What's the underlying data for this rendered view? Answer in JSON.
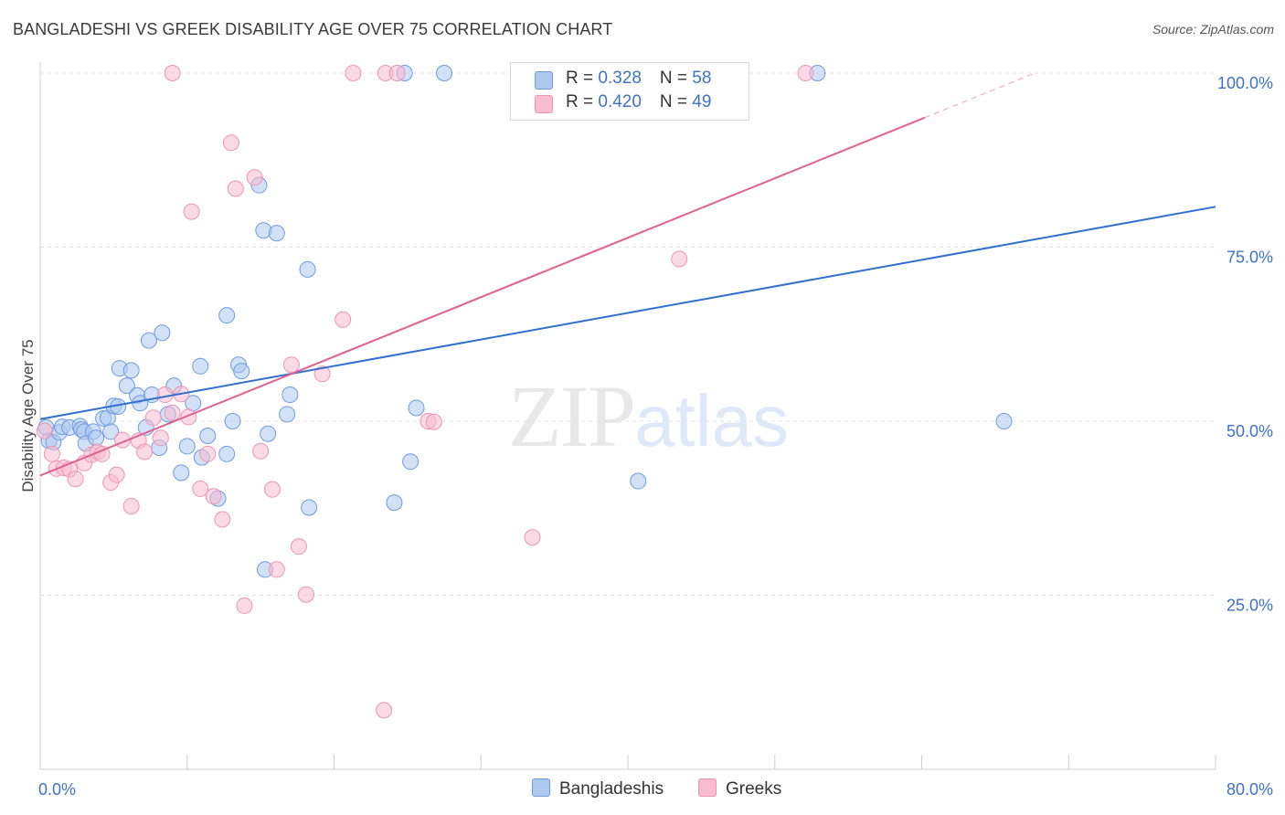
{
  "header": {
    "title": "BANGLADESHI VS GREEK DISABILITY AGE OVER 75 CORRELATION CHART",
    "source_prefix": "Source: ",
    "source_name": "ZipAtlas.com"
  },
  "watermark": {
    "zip": "ZIP",
    "atlas": "atlas"
  },
  "legend": {
    "rows": [
      {
        "r_label": "R = ",
        "r_value": "0.328",
        "n_label": "N = ",
        "n_value": "58"
      },
      {
        "r_label": "R = ",
        "r_value": "0.420",
        "n_label": "N = ",
        "n_value": "49"
      }
    ]
  },
  "bottom_legend": {
    "items": [
      "Bangladeshis",
      "Greeks"
    ]
  },
  "colors": {
    "bangladeshi_fill": "#aec9f0",
    "bangladeshi_stroke": "#6e9be0",
    "bangladeshi_line": "#2f6fd0",
    "greek_fill": "#f7bcd0",
    "greek_stroke": "#ee94b3",
    "greek_line": "#e0608f",
    "grid": "#e3e3e3",
    "tick_text": "#3f72c6"
  },
  "chart_data": {
    "type": "scatter",
    "title": "BANGLADESHI VS GREEK DISABILITY AGE OVER 75 CORRELATION CHART",
    "xlabel": "",
    "ylabel": "Disability Age Over 75",
    "xlim": [
      0,
      80
    ],
    "ylim": [
      0,
      100
    ],
    "x_tick_labels": [
      "0.0%",
      "80.0%"
    ],
    "y_tick_labels": [
      "25.0%",
      "50.0%",
      "75.0%",
      "100.0%"
    ],
    "y_tick_values": [
      25,
      50,
      75,
      100
    ],
    "grid": "horizontal dashed",
    "legend_placement": "top-center",
    "series": [
      {
        "name": "Bangladeshis",
        "r": 0.328,
        "n": 58,
        "trend": {
          "x": [
            0,
            80
          ],
          "y": [
            50.3,
            80.8
          ]
        },
        "points": [
          [
            0.4,
            49.1
          ],
          [
            0.6,
            47.2
          ],
          [
            0.9,
            47.0
          ],
          [
            1.3,
            48.4
          ],
          [
            1.5,
            49.2
          ],
          [
            2.0,
            49.1
          ],
          [
            2.7,
            49.3
          ],
          [
            2.8,
            48.8
          ],
          [
            3.0,
            48.5
          ],
          [
            3.1,
            46.8
          ],
          [
            3.6,
            48.5
          ],
          [
            3.8,
            47.6
          ],
          [
            4.3,
            50.4
          ],
          [
            4.6,
            50.5
          ],
          [
            4.8,
            48.5
          ],
          [
            5.0,
            52.2
          ],
          [
            5.3,
            52.1
          ],
          [
            5.4,
            57.6
          ],
          [
            5.9,
            55.1
          ],
          [
            6.2,
            57.3
          ],
          [
            6.6,
            53.7
          ],
          [
            6.8,
            52.6
          ],
          [
            7.2,
            49.1
          ],
          [
            7.4,
            61.6
          ],
          [
            7.6,
            53.8
          ],
          [
            8.1,
            46.2
          ],
          [
            8.3,
            62.7
          ],
          [
            8.7,
            51.0
          ],
          [
            9.1,
            55.1
          ],
          [
            9.6,
            42.6
          ],
          [
            10.0,
            46.4
          ],
          [
            10.4,
            52.6
          ],
          [
            10.9,
            57.9
          ],
          [
            11.0,
            44.8
          ],
          [
            11.4,
            47.9
          ],
          [
            12.1,
            38.9
          ],
          [
            12.7,
            65.2
          ],
          [
            12.7,
            45.3
          ],
          [
            13.1,
            50.0
          ],
          [
            13.5,
            58.1
          ],
          [
            13.7,
            57.2
          ],
          [
            14.9,
            83.9
          ],
          [
            15.2,
            77.4
          ],
          [
            15.3,
            28.7
          ],
          [
            15.5,
            48.2
          ],
          [
            16.1,
            77.0
          ],
          [
            16.8,
            51.0
          ],
          [
            17.0,
            53.8
          ],
          [
            18.2,
            71.8
          ],
          [
            18.3,
            37.6
          ],
          [
            24.1,
            38.3
          ],
          [
            24.8,
            100.0
          ],
          [
            25.2,
            44.2
          ],
          [
            25.6,
            51.9
          ],
          [
            27.5,
            100.0
          ],
          [
            40.7,
            41.4
          ],
          [
            52.9,
            100.0
          ],
          [
            65.6,
            50.0
          ]
        ]
      },
      {
        "name": "Greeks",
        "r": 0.42,
        "n": 49,
        "trend": {
          "x": [
            0,
            60.2
          ],
          "y": [
            42.2,
            93.6
          ]
        },
        "trend_extension": {
          "x": [
            60.2,
            67.7
          ],
          "y": [
            93.6,
            100.0
          ]
        },
        "points": [
          [
            0.3,
            48.6
          ],
          [
            0.8,
            45.3
          ],
          [
            1.1,
            43.2
          ],
          [
            1.6,
            43.3
          ],
          [
            2.0,
            43.1
          ],
          [
            2.4,
            41.7
          ],
          [
            3.0,
            44.0
          ],
          [
            3.5,
            45.2
          ],
          [
            3.9,
            45.6
          ],
          [
            4.2,
            45.3
          ],
          [
            4.8,
            41.2
          ],
          [
            5.2,
            42.3
          ],
          [
            5.6,
            47.3
          ],
          [
            6.2,
            37.8
          ],
          [
            6.7,
            47.2
          ],
          [
            7.1,
            45.6
          ],
          [
            7.7,
            50.5
          ],
          [
            8.2,
            47.6
          ],
          [
            8.5,
            53.8
          ],
          [
            9.0,
            51.2
          ],
          [
            9.6,
            53.9
          ],
          [
            10.1,
            50.6
          ],
          [
            10.3,
            80.1
          ],
          [
            10.9,
            40.3
          ],
          [
            11.4,
            45.3
          ],
          [
            11.8,
            39.2
          ],
          [
            12.4,
            35.9
          ],
          [
            13.0,
            90.0
          ],
          [
            13.3,
            83.4
          ],
          [
            13.9,
            23.5
          ],
          [
            14.6,
            85.0
          ],
          [
            15.0,
            45.7
          ],
          [
            15.8,
            40.2
          ],
          [
            16.1,
            28.7
          ],
          [
            17.1,
            58.1
          ],
          [
            17.6,
            32.0
          ],
          [
            18.1,
            25.1
          ],
          [
            19.2,
            56.8
          ],
          [
            20.6,
            64.6
          ],
          [
            21.3,
            100.0
          ],
          [
            23.4,
            8.5
          ],
          [
            23.5,
            100.0
          ],
          [
            24.3,
            100.0
          ],
          [
            26.4,
            50.0
          ],
          [
            26.8,
            49.9
          ],
          [
            33.5,
            33.3
          ],
          [
            43.5,
            73.3
          ],
          [
            52.1,
            100.0
          ],
          [
            9.0,
            100.0
          ]
        ]
      }
    ]
  }
}
